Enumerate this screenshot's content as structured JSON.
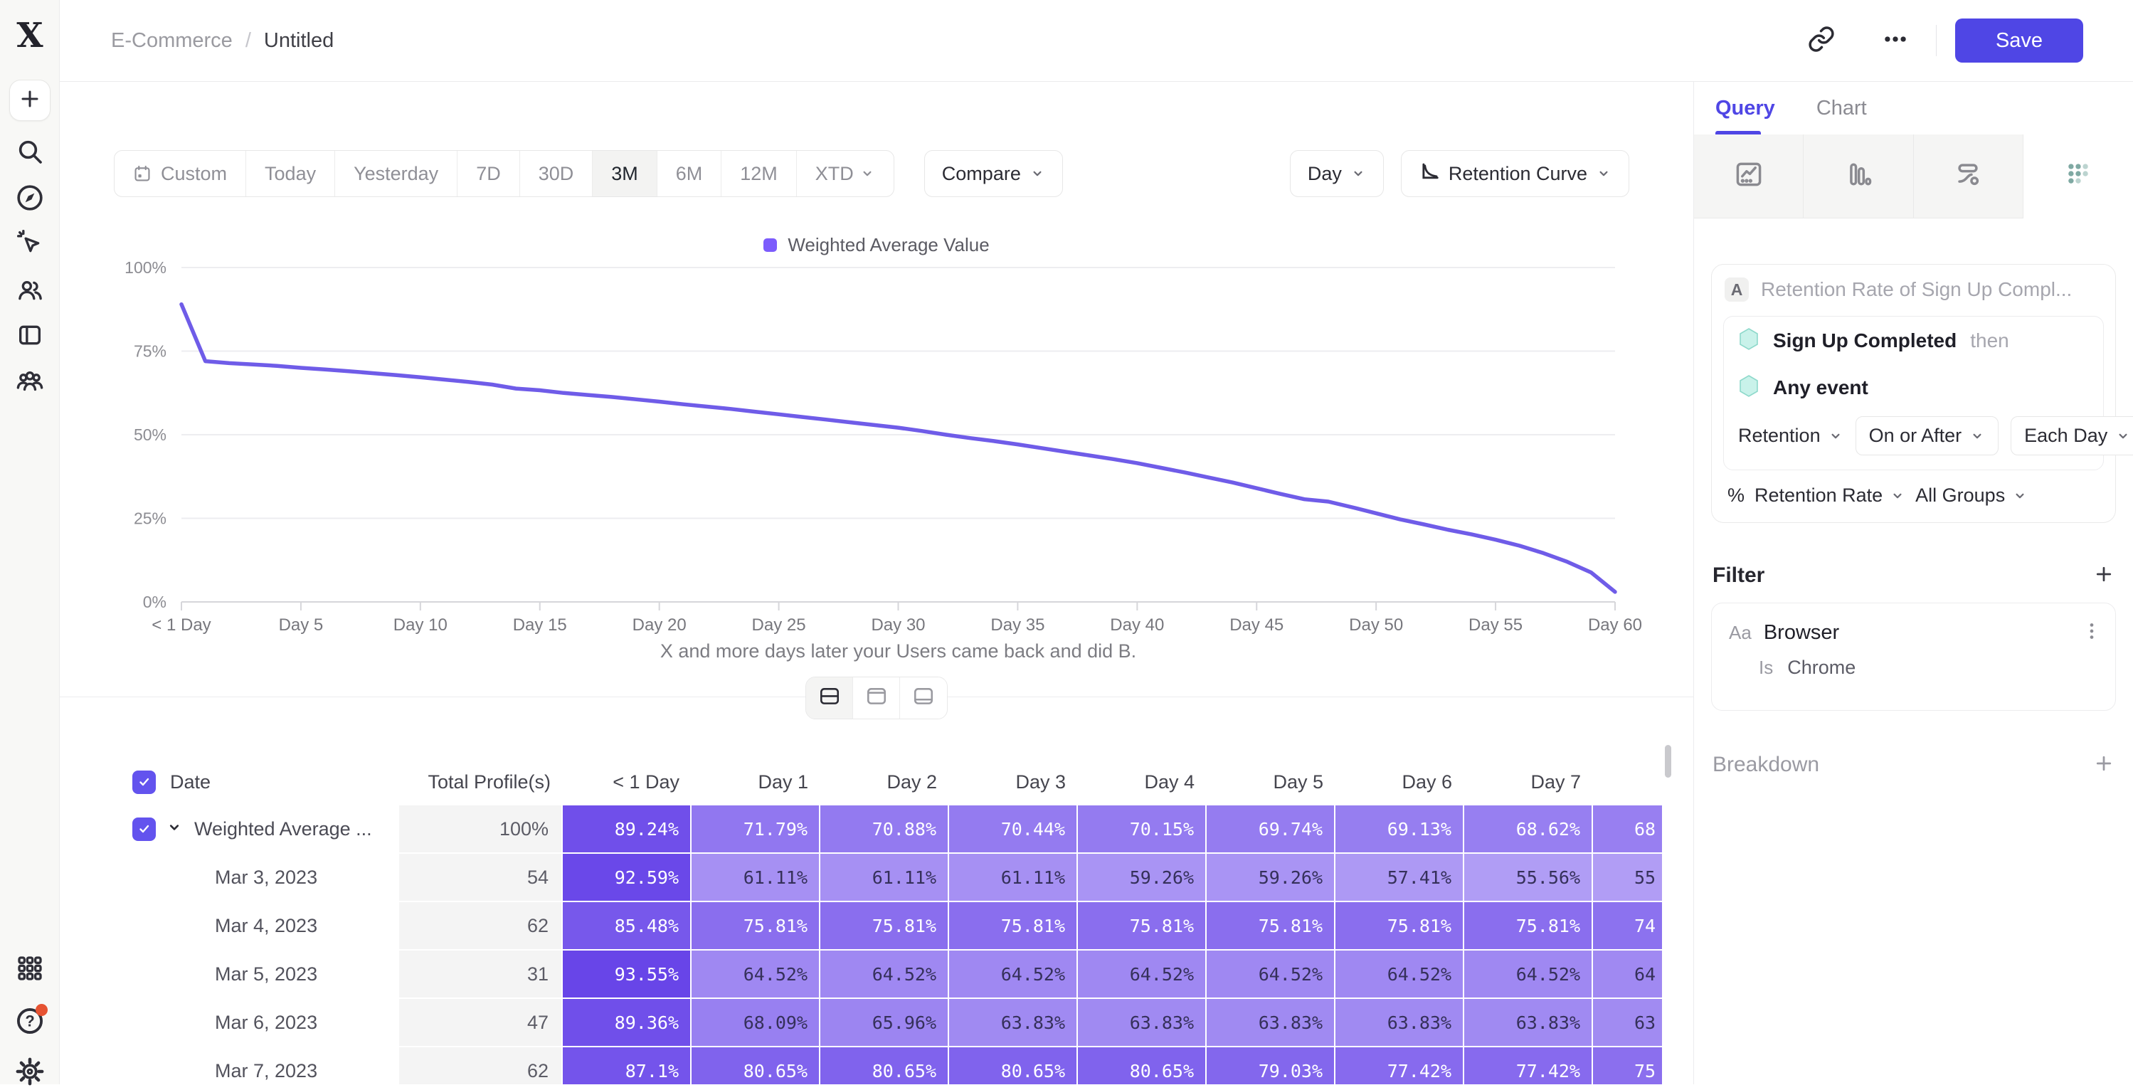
{
  "app": {
    "logo_glyph": "X"
  },
  "topbar": {
    "breadcrumb": {
      "parent": "E-Commerce",
      "separator": "/",
      "current": "Untitled"
    },
    "save_label": "Save"
  },
  "icons": {
    "sidebar": [
      "plus-icon",
      "search-icon",
      "compass-icon",
      "cursor-click-icon",
      "users-icon",
      "workbook-icon",
      "audience-icon",
      "apps-grid-icon",
      "help-icon",
      "settings-gear-icon"
    ],
    "topbar": [
      "link-icon",
      "more-ellipsis-icon"
    ],
    "panel_chart_types": [
      "line-chart-icon",
      "bar-chart-icon",
      "flows-icon",
      "retention-grid-icon"
    ],
    "view_toggle": [
      "split-view-icon",
      "chart-only-view-icon",
      "table-only-view-icon"
    ]
  },
  "toolbar": {
    "ranges": [
      "Custom",
      "Today",
      "Yesterday",
      "7D",
      "30D",
      "3M",
      "6M",
      "12M",
      "XTD"
    ],
    "selected_range": "3M",
    "compare_label": "Compare",
    "granularity": "Day",
    "chart_type": "Retention Curve"
  },
  "chart_data": {
    "type": "line",
    "legend": [
      "Weighted Average Value"
    ],
    "line_color": "#6f5ce8",
    "xlabel": "X and more days later your Users came back and did B.",
    "ylim": [
      0,
      100
    ],
    "y_ticks": [
      "100%",
      "75%",
      "50%",
      "25%",
      "0%"
    ],
    "x_ticks": [
      "< 1 Day",
      "Day 5",
      "Day 10",
      "Day 15",
      "Day 20",
      "Day 25",
      "Day 30",
      "Day 35",
      "Day 40",
      "Day 45",
      "Day 50",
      "Day 55",
      "Day 60"
    ],
    "x_tick_days": [
      0,
      5,
      10,
      15,
      20,
      25,
      30,
      35,
      40,
      45,
      50,
      55,
      60
    ],
    "series": [
      {
        "name": "Weighted Average Value",
        "points": [
          [
            0,
            89
          ],
          [
            1,
            72
          ],
          [
            2,
            71.4
          ],
          [
            3,
            71
          ],
          [
            4,
            70.6
          ],
          [
            5,
            70
          ],
          [
            6,
            69.5
          ],
          [
            7,
            69
          ],
          [
            8,
            68.4
          ],
          [
            9,
            67.8
          ],
          [
            10,
            67.2
          ],
          [
            11,
            66.5
          ],
          [
            12,
            65.8
          ],
          [
            13,
            65
          ],
          [
            14,
            63.8
          ],
          [
            15,
            63.3
          ],
          [
            16,
            62.5
          ],
          [
            17,
            61.9
          ],
          [
            18,
            61.3
          ],
          [
            19,
            60.6
          ],
          [
            20,
            59.9
          ],
          [
            21,
            59.1
          ],
          [
            22,
            58.4
          ],
          [
            23,
            57.7
          ],
          [
            24,
            56.9
          ],
          [
            25,
            56.1
          ],
          [
            26,
            55.3
          ],
          [
            27,
            54.5
          ],
          [
            28,
            53.7
          ],
          [
            29,
            52.9
          ],
          [
            30,
            52.1
          ],
          [
            31,
            51.1
          ],
          [
            32,
            50
          ],
          [
            33,
            49
          ],
          [
            34,
            48.1
          ],
          [
            35,
            47.1
          ],
          [
            36,
            46
          ],
          [
            37,
            44.9
          ],
          [
            38,
            43.8
          ],
          [
            39,
            42.7
          ],
          [
            40,
            41.5
          ],
          [
            41,
            40.1
          ],
          [
            42,
            38.7
          ],
          [
            43,
            37.2
          ],
          [
            44,
            35.7
          ],
          [
            45,
            34
          ],
          [
            46,
            32.3
          ],
          [
            47,
            30.7
          ],
          [
            48,
            30
          ],
          [
            49,
            28.3
          ],
          [
            50,
            26.5
          ],
          [
            51,
            24.7
          ],
          [
            52,
            23.2
          ],
          [
            53,
            21.6
          ],
          [
            54,
            20.2
          ],
          [
            55,
            18.6
          ],
          [
            56,
            16.8
          ],
          [
            57,
            14.6
          ],
          [
            58,
            12
          ],
          [
            59,
            8.8
          ],
          [
            60,
            3
          ]
        ]
      }
    ]
  },
  "table": {
    "headers": [
      "Date",
      "Total Profile(s)",
      "< 1 Day",
      "Day 1",
      "Day 2",
      "Day 3",
      "Day 4",
      "Day 5",
      "Day 6",
      "Day 7"
    ],
    "rows": [
      {
        "label": "Weighted Average ...",
        "expandable": true,
        "checked": true,
        "total": "100%",
        "cells": [
          "89.24%",
          "71.79%",
          "70.88%",
          "70.44%",
          "70.15%",
          "69.74%",
          "69.13%",
          "68.62%"
        ],
        "partial": "68"
      },
      {
        "label": "Mar 3, 2023",
        "total": "54",
        "cells": [
          "92.59%",
          "61.11%",
          "61.11%",
          "61.11%",
          "59.26%",
          "59.26%",
          "57.41%",
          "55.56%"
        ],
        "partial": "55"
      },
      {
        "label": "Mar 4, 2023",
        "total": "62",
        "cells": [
          "85.48%",
          "75.81%",
          "75.81%",
          "75.81%",
          "75.81%",
          "75.81%",
          "75.81%",
          "75.81%"
        ],
        "partial": "74"
      },
      {
        "label": "Mar 5, 2023",
        "total": "31",
        "cells": [
          "93.55%",
          "64.52%",
          "64.52%",
          "64.52%",
          "64.52%",
          "64.52%",
          "64.52%",
          "64.52%"
        ],
        "partial": "64"
      },
      {
        "label": "Mar 6, 2023",
        "total": "47",
        "cells": [
          "89.36%",
          "68.09%",
          "65.96%",
          "63.83%",
          "63.83%",
          "63.83%",
          "63.83%",
          "63.83%"
        ],
        "partial": "63"
      },
      {
        "label": "Mar 7, 2023",
        "total": "62",
        "cells": [
          "87.1%",
          "80.65%",
          "80.65%",
          "80.65%",
          "80.65%",
          "79.03%",
          "77.42%",
          "77.42%"
        ],
        "partial": "75"
      }
    ],
    "cell_color_dark": "#6542e8",
    "cell_color_light": "#b7a5f6"
  },
  "panel": {
    "tabs": {
      "active": "Query",
      "other": "Chart"
    },
    "query": {
      "badge": "A",
      "title": "Retention Rate of Sign Up Compl...",
      "events": [
        {
          "name": "Sign Up Completed",
          "suffix": "then"
        },
        {
          "name": "Any event",
          "suffix": ""
        }
      ],
      "controls": {
        "mode": "Retention",
        "operator": "On or After",
        "granularity": "Each Day"
      },
      "measure": {
        "symbol": "%",
        "metric": "Retention Rate",
        "groups": "All Groups"
      }
    },
    "filter": {
      "title": "Filter",
      "prop_type": "Aa",
      "property": "Browser",
      "operator": "Is",
      "value": "Chrome"
    },
    "breakdown": {
      "title": "Breakdown"
    }
  }
}
